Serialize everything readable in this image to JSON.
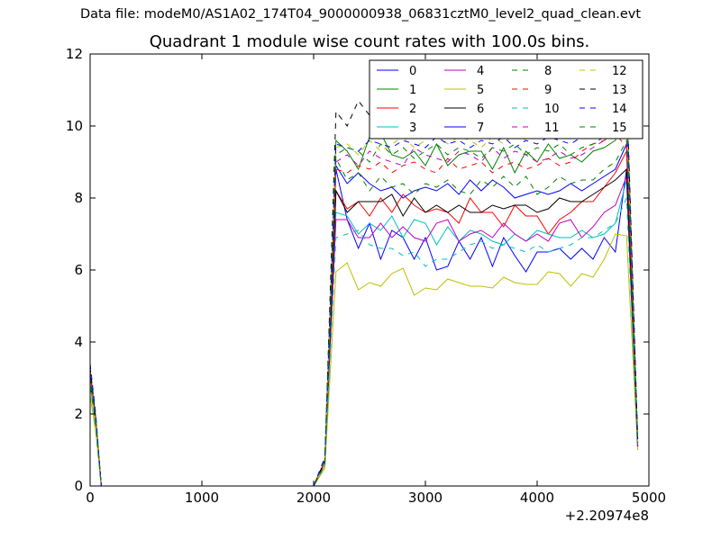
{
  "supertitle": "Data file: modeM0/AS1A02_174T04_9000000938_06831cztM0_level2_quad_clean.evt",
  "chart_data": {
    "type": "line",
    "title": "Quadrant 1 module wise count rates with 100.0s bins.",
    "xlabel": "",
    "ylabel": "",
    "x_offset_label": "+2.20974e8",
    "xlim": [
      0,
      5000
    ],
    "ylim": [
      0,
      12
    ],
    "xticks": [
      0,
      1000,
      2000,
      3000,
      4000,
      5000
    ],
    "yticks": [
      0,
      2,
      4,
      6,
      8,
      10,
      12
    ],
    "grid": false,
    "legend_position": "top-right",
    "x": [
      0,
      50,
      100,
      2000,
      2100,
      2200,
      2300,
      2400,
      2500,
      2600,
      2700,
      2800,
      2900,
      3000,
      3100,
      3200,
      3300,
      3400,
      3500,
      3600,
      3700,
      3800,
      3900,
      4000,
      4100,
      4200,
      4300,
      4400,
      4500,
      4600,
      4700,
      4800,
      4900
    ],
    "series": [
      {
        "name": "0",
        "color": "#0000ff",
        "dash": "solid",
        "values": [
          3.1,
          1.8,
          0,
          0,
          0.7,
          8.8,
          7.4,
          6.6,
          7.3,
          6.3,
          7.1,
          6.9,
          6.3,
          6.9,
          6.0,
          6.1,
          6.8,
          6.3,
          6.9,
          6.1,
          6.9,
          6.4,
          5.95,
          6.5,
          6.5,
          6.6,
          6.3,
          6.6,
          6.3,
          6.9,
          6.5,
          8.8,
          1.2
        ]
      },
      {
        "name": "1",
        "color": "#008000",
        "dash": "solid",
        "values": [
          2.9,
          1.7,
          0,
          0,
          0.6,
          9.6,
          9.3,
          8.8,
          9.7,
          9.8,
          9.2,
          9.1,
          9.3,
          8.9,
          9.5,
          8.9,
          9.2,
          9.3,
          9.3,
          8.8,
          9.4,
          8.7,
          9.3,
          9.0,
          9.5,
          9.1,
          9.2,
          9.0,
          9.3,
          9.4,
          9.6,
          10.9,
          1.1
        ]
      },
      {
        "name": "2",
        "color": "#ff0000",
        "dash": "solid",
        "values": [
          3.0,
          1.8,
          0,
          0,
          0.6,
          8.2,
          7.7,
          7.9,
          7.5,
          8.0,
          7.6,
          8.1,
          7.8,
          7.6,
          7.7,
          7.6,
          7.3,
          8.0,
          7.6,
          7.6,
          7.2,
          7.8,
          7.5,
          7.5,
          7.0,
          7.4,
          7.6,
          7.9,
          7.9,
          8.3,
          8.7,
          9.3,
          1.1
        ]
      },
      {
        "name": "3",
        "color": "#00bfbf",
        "dash": "solid",
        "values": [
          2.8,
          1.7,
          0,
          0,
          0.5,
          7.6,
          7.5,
          7.0,
          7.3,
          7.1,
          7.5,
          6.9,
          7.4,
          7.3,
          6.7,
          7.2,
          6.8,
          7.1,
          7.0,
          6.8,
          6.7,
          7.0,
          6.8,
          7.1,
          7.0,
          6.9,
          6.9,
          7.1,
          6.9,
          7.0,
          7.3,
          8.5,
          1.0
        ]
      },
      {
        "name": "4",
        "color": "#bf00bf",
        "dash": "solid",
        "values": [
          2.9,
          1.7,
          0,
          0,
          0.6,
          7.4,
          7.4,
          6.9,
          6.9,
          7.3,
          6.9,
          7.2,
          6.9,
          6.8,
          7.3,
          7.4,
          6.8,
          7.0,
          7.1,
          6.9,
          7.3,
          7.0,
          6.8,
          7.0,
          6.8,
          7.3,
          7.4,
          6.9,
          7.2,
          7.6,
          7.8,
          8.6,
          1.0
        ]
      },
      {
        "name": "5",
        "color": "#bfbf00",
        "dash": "solid",
        "values": [
          2.5,
          1.5,
          0,
          0,
          0.5,
          5.95,
          6.2,
          5.45,
          5.65,
          5.55,
          5.9,
          6.05,
          5.3,
          5.5,
          5.45,
          5.75,
          5.65,
          5.55,
          5.55,
          5.5,
          5.8,
          5.65,
          5.6,
          5.6,
          5.95,
          5.9,
          5.55,
          5.9,
          5.8,
          6.3,
          7.0,
          6.95,
          1.0
        ]
      },
      {
        "name": "6",
        "color": "#000000",
        "dash": "solid",
        "values": [
          2.9,
          1.7,
          0,
          0,
          0.6,
          8.2,
          7.6,
          7.9,
          7.9,
          7.9,
          8.1,
          7.5,
          8.0,
          7.6,
          7.8,
          7.6,
          7.8,
          7.6,
          7.6,
          7.8,
          7.7,
          7.8,
          7.8,
          7.6,
          7.7,
          8.0,
          7.9,
          7.9,
          8.1,
          8.3,
          8.5,
          8.8,
          1.1
        ]
      },
      {
        "name": "7",
        "color": "#0000ff",
        "dash": "solid",
        "values": [
          3.0,
          1.8,
          0,
          0,
          0.7,
          8.9,
          8.4,
          8.7,
          8.4,
          8.2,
          8.3,
          8.0,
          8.2,
          8.3,
          8.2,
          8.4,
          8.1,
          8.5,
          8.2,
          8.5,
          8.3,
          8.0,
          8.1,
          8.2,
          8.1,
          8.2,
          8.4,
          8.2,
          8.4,
          8.6,
          8.8,
          9.5,
          1.1
        ]
      },
      {
        "name": "8",
        "color": "#008000",
        "dash": "dashed",
        "values": [
          3.1,
          1.8,
          0,
          0,
          0.7,
          9.1,
          8.5,
          8.7,
          8.2,
          8.6,
          8.3,
          8.4,
          8.1,
          8.4,
          8.3,
          8.5,
          8.2,
          8.1,
          8.5,
          8.3,
          8.6,
          8.3,
          8.6,
          8.1,
          8.3,
          8.6,
          8.4,
          8.5,
          8.5,
          8.8,
          9.0,
          9.6,
          1.2
        ]
      },
      {
        "name": "9",
        "color": "#ff0000",
        "dash": "dashed",
        "values": [
          3.2,
          1.9,
          0,
          0,
          0.7,
          8.8,
          8.7,
          8.9,
          8.8,
          9.0,
          8.7,
          8.9,
          9.0,
          8.8,
          8.7,
          9.1,
          8.8,
          8.9,
          9.0,
          8.7,
          8.9,
          9.0,
          8.8,
          8.9,
          9.1,
          8.9,
          9.0,
          9.3,
          9.5,
          9.6,
          9.8,
          9.4,
          1.2
        ]
      },
      {
        "name": "10",
        "color": "#00bfbf",
        "dash": "dashed",
        "values": [
          2.8,
          1.6,
          0,
          0,
          0.6,
          6.9,
          7.0,
          7.1,
          6.7,
          6.6,
          6.6,
          6.4,
          6.5,
          6.1,
          6.3,
          6.3,
          6.5,
          6.7,
          6.8,
          6.6,
          6.7,
          6.6,
          6.5,
          6.7,
          6.5,
          6.6,
          6.7,
          6.9,
          6.9,
          7.1,
          7.3,
          8.0,
          1.0
        ]
      },
      {
        "name": "11",
        "color": "#bf00bf",
        "dash": "dashed",
        "values": [
          3.0,
          1.8,
          0,
          0,
          0.6,
          9.0,
          9.2,
          8.9,
          9.3,
          9.1,
          9.0,
          8.9,
          9.4,
          9.2,
          9.1,
          9.0,
          9.3,
          9.2,
          9.0,
          9.4,
          9.1,
          9.3,
          9.2,
          9.0,
          9.1,
          9.3,
          9.1,
          9.2,
          9.4,
          9.6,
          9.9,
          10.1,
          1.1
        ]
      },
      {
        "name": "12",
        "color": "#bfbf00",
        "dash": "dashed",
        "values": [
          2.9,
          1.7,
          0,
          0,
          0.6,
          9.4,
          9.5,
          9.2,
          9.6,
          9.3,
          9.5,
          9.7,
          9.4,
          9.6,
          9.8,
          9.5,
          9.7,
          9.6,
          9.4,
          9.7,
          9.5,
          9.8,
          9.6,
          9.5,
          9.7,
          9.6,
          9.8,
          9.7,
          9.9,
          10.1,
          10.3,
          10.6,
          1.2
        ]
      },
      {
        "name": "13",
        "color": "#000000",
        "dash": "dashed",
        "values": [
          3.3,
          1.9,
          0,
          0,
          0.7,
          10.4,
          10.0,
          10.7,
          10.3,
          10.1,
          10.4,
          9.9,
          10.3,
          10.0,
          10.4,
          9.9,
          10.2,
          10.3,
          10.0,
          10.4,
          10.1,
          10.3,
          10.0,
          10.2,
          10.4,
          10.1,
          10.3,
          10.2,
          10.5,
          10.6,
          10.8,
          11.2,
          1.3
        ]
      },
      {
        "name": "14",
        "color": "#0000ff",
        "dash": "dashed",
        "values": [
          3.4,
          2.0,
          0,
          0,
          0.8,
          9.5,
          9.4,
          9.3,
          9.6,
          9.5,
          9.4,
          9.6,
          9.5,
          9.4,
          9.7,
          9.5,
          9.6,
          9.4,
          9.6,
          9.5,
          9.7,
          9.4,
          9.6,
          9.5,
          9.7,
          9.6,
          9.5,
          9.7,
          9.8,
          10.0,
          10.4,
          11.0,
          1.3
        ]
      },
      {
        "name": "15",
        "color": "#008000",
        "dash": "dashed",
        "values": [
          3.0,
          1.8,
          0,
          0,
          0.6,
          9.2,
          9.4,
          9.3,
          9.0,
          9.5,
          9.2,
          9.4,
          9.1,
          9.3,
          9.5,
          9.2,
          9.4,
          9.3,
          9.1,
          9.4,
          9.3,
          9.5,
          9.2,
          9.4,
          9.3,
          9.5,
          9.2,
          9.4,
          9.5,
          9.7,
          9.9,
          10.5,
          1.2
        ]
      }
    ]
  }
}
